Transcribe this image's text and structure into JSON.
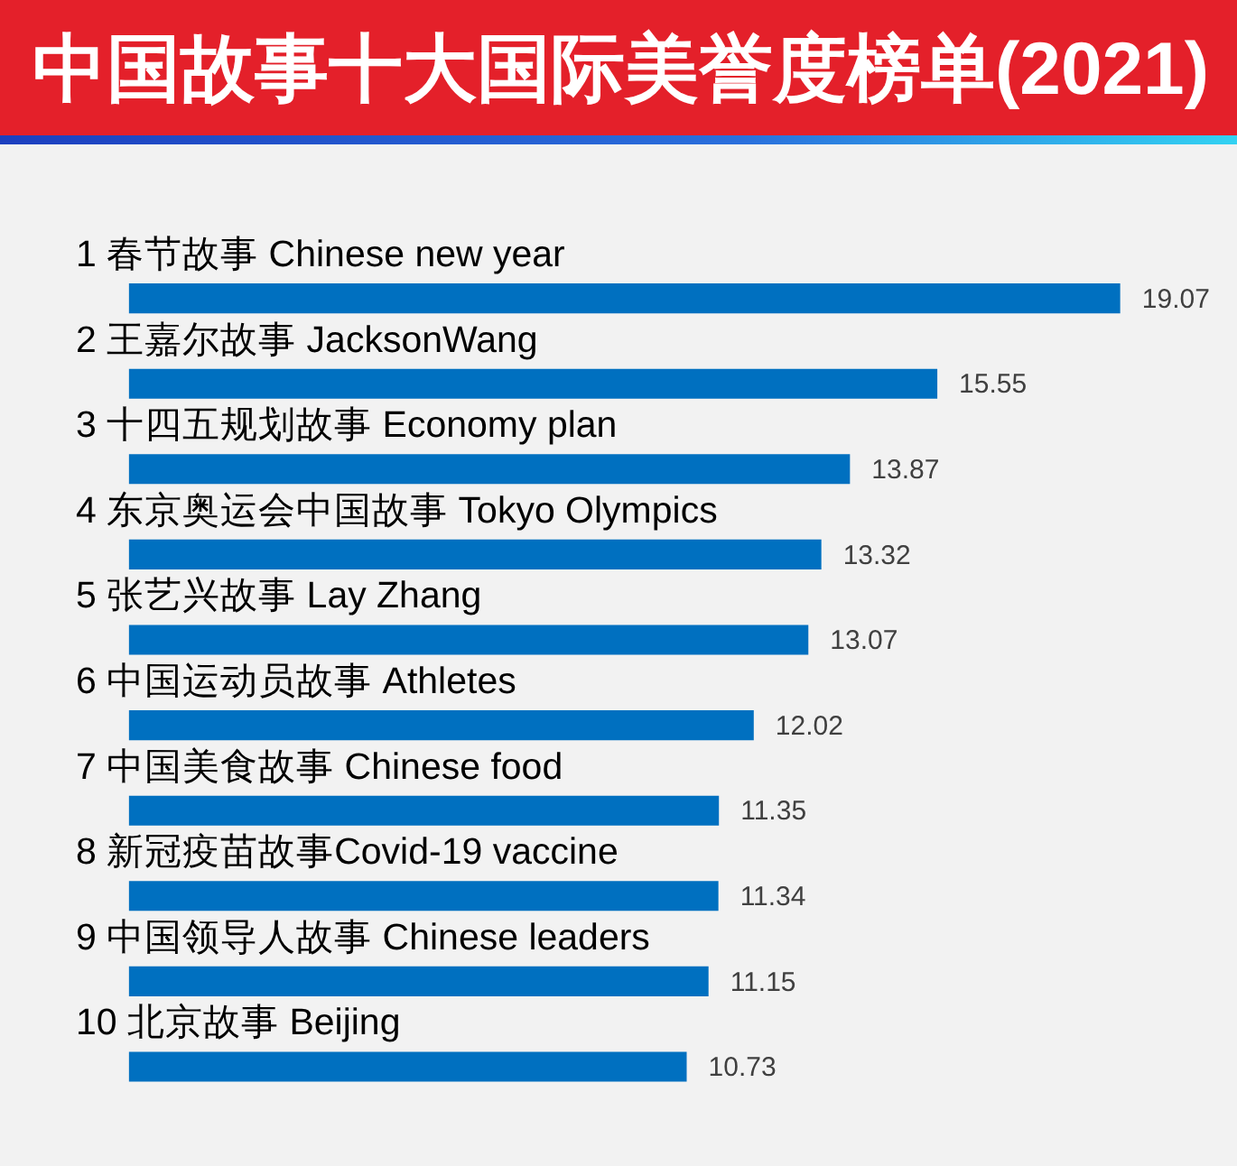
{
  "chart_data": {
    "type": "bar",
    "orientation": "horizontal",
    "title": "中国故事十大国际美誉度榜单(2021)",
    "categories": [
      "1 春节故事 Chinese new year",
      "2 王嘉尔故事 JacksonWang",
      "3 十四五规划故事 Economy plan",
      "4 东京奥运会中国故事 Tokyo Olympics",
      "5 张艺兴故事 Lay Zhang",
      "6 中国运动员故事 Athletes",
      "7 中国美食故事 Chinese food",
      "8 新冠疫苗故事Covid-19 vaccine",
      "9 中国领导人故事 Chinese leaders",
      "10 北京故事 Beijing"
    ],
    "values": [
      19.07,
      15.55,
      13.87,
      13.32,
      13.07,
      12.02,
      11.35,
      11.34,
      11.15,
      10.73
    ],
    "color": "#0070c0",
    "tick_labels": "y",
    "data_labels": true
  }
}
